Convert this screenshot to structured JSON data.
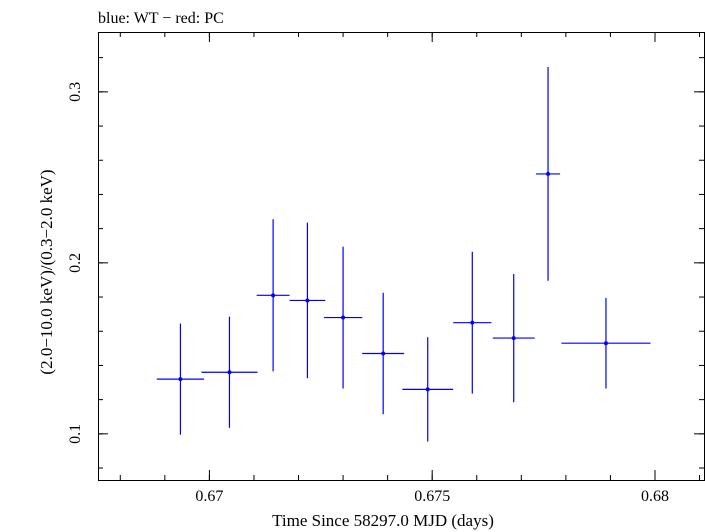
{
  "chart_data": {
    "type": "scatter",
    "title": "blue: WT − red: PC",
    "xlabel": "Time Since 58297.0 MJD (days)",
    "ylabel": "(2.0−10.0 keV)/(0.3−2.0 keV)",
    "xlim": [
      0.6675,
      0.6811
    ],
    "ylim": [
      0.073,
      0.335
    ],
    "x_ticks": [
      {
        "value": 0.67,
        "label": "0.67"
      },
      {
        "value": 0.675,
        "label": "0.675"
      },
      {
        "value": 0.68,
        "label": "0.68"
      }
    ],
    "y_ticks": [
      {
        "value": 0.1,
        "label": "0.1"
      },
      {
        "value": 0.2,
        "label": "0.2"
      },
      {
        "value": 0.3,
        "label": "0.3"
      }
    ],
    "x_minor_step": 0.001,
    "y_minor_step": 0.02,
    "series": [
      {
        "name": "WT",
        "color": "#0000ff",
        "points": [
          {
            "x": 0.66935,
            "xerr": 0.00053,
            "y": 0.132,
            "yerr": 0.0325
          },
          {
            "x": 0.67045,
            "xerr": 0.00063,
            "y": 0.136,
            "yerr": 0.0325
          },
          {
            "x": 0.67143,
            "xerr": 0.00037,
            "y": 0.181,
            "yerr": 0.0445
          },
          {
            "x": 0.6722,
            "xerr": 0.0004,
            "y": 0.178,
            "yerr": 0.0455
          },
          {
            "x": 0.673,
            "xerr": 0.00043,
            "y": 0.168,
            "yerr": 0.0415
          },
          {
            "x": 0.6739,
            "xerr": 0.00047,
            "y": 0.147,
            "yerr": 0.0355
          },
          {
            "x": 0.6749,
            "xerr": 0.00057,
            "y": 0.126,
            "yerr": 0.0305
          },
          {
            "x": 0.6759,
            "xerr": 0.00043,
            "y": 0.165,
            "yerr": 0.0415
          },
          {
            "x": 0.67683,
            "xerr": 0.00047,
            "y": 0.156,
            "yerr": 0.0375
          },
          {
            "x": 0.6776,
            "xerr": 0.00027,
            "y": 0.252,
            "yerr": 0.0625
          },
          {
            "x": 0.6789,
            "xerr": 0.001,
            "y": 0.153,
            "yerr": 0.0265
          }
        ]
      }
    ]
  }
}
